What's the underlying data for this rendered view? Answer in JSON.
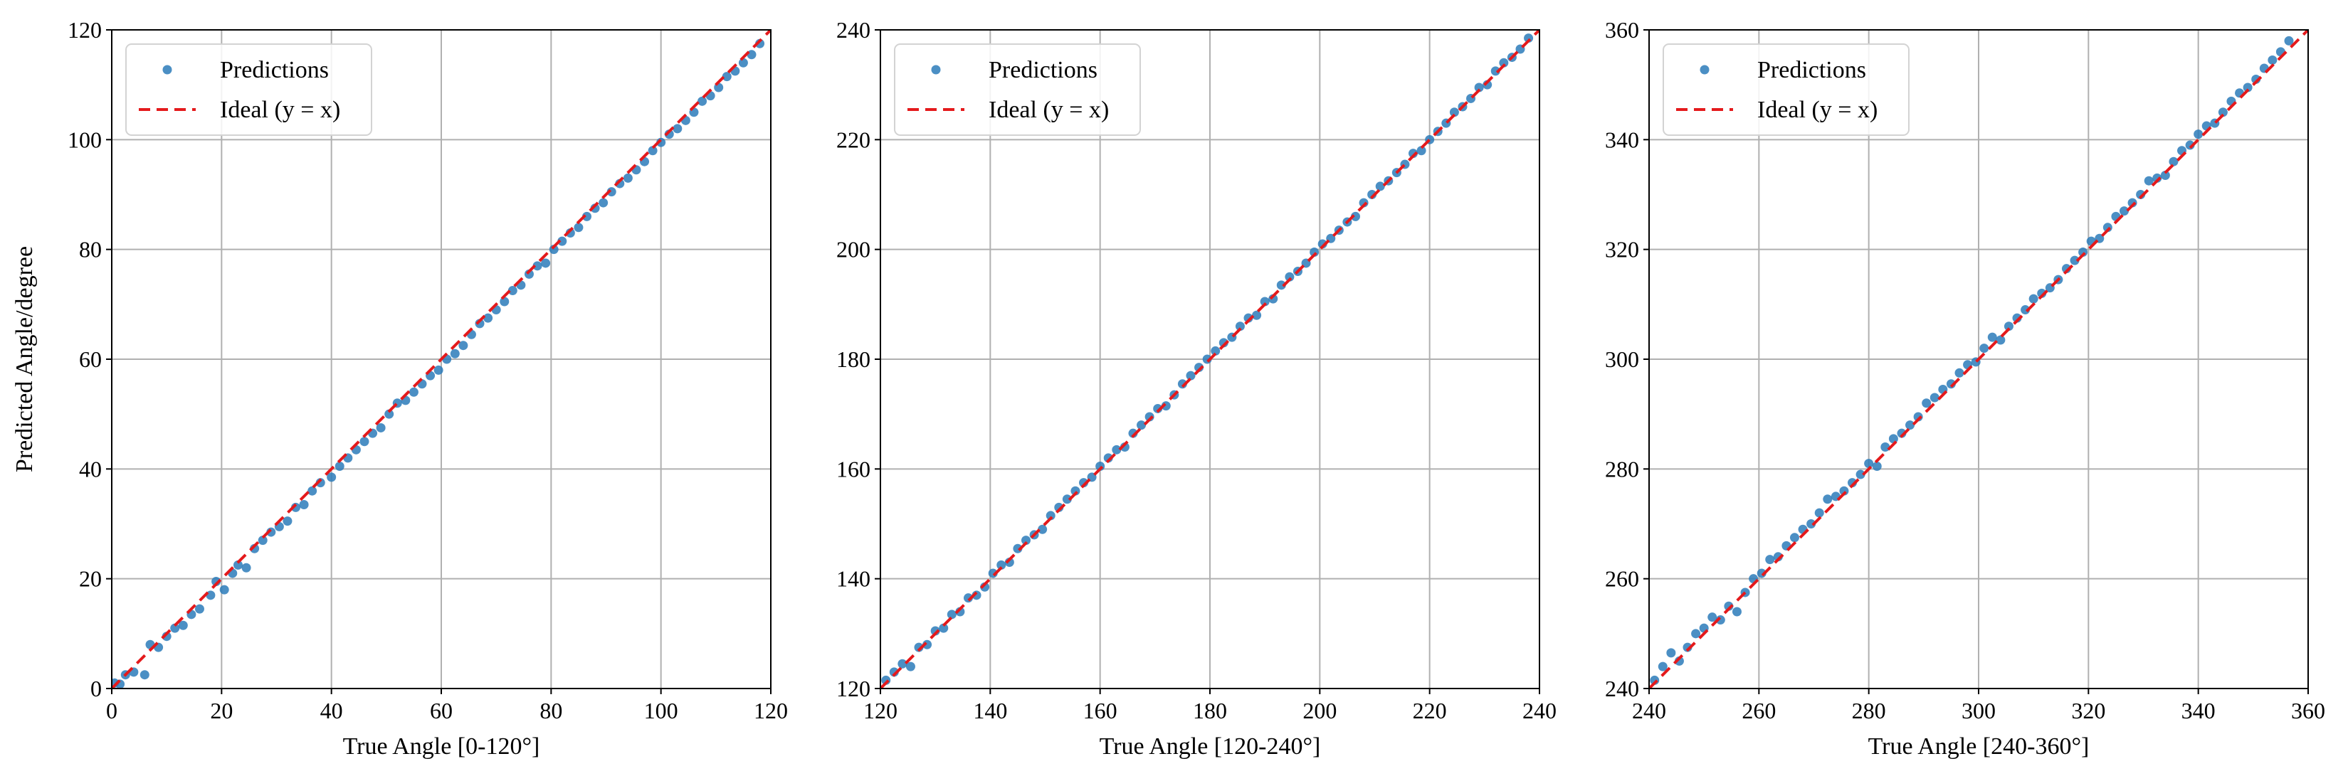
{
  "chart_data": [
    {
      "type": "scatter",
      "xlabel": "True Angle [0-120°]",
      "ylabel": "Predicted Angle/degree",
      "xlim": [
        0,
        120
      ],
      "ylim": [
        0,
        120
      ],
      "xticks": [
        0,
        20,
        40,
        60,
        80,
        100,
        120
      ],
      "yticks": [
        0,
        20,
        40,
        60,
        80,
        100,
        120
      ],
      "grid": true,
      "legend_placement": "top-left",
      "series": [
        {
          "name": "Predictions",
          "kind": "scatter",
          "color": "#2b7bba",
          "x": [
            0.5,
            1.5,
            2.5,
            4,
            6,
            7,
            8.5,
            10,
            11.5,
            13,
            14.5,
            16,
            18,
            19,
            20.5,
            22,
            23,
            24.5,
            26,
            27.5,
            29,
            30.5,
            32,
            33.5,
            35,
            36.5,
            38,
            40,
            41.5,
            43,
            44.5,
            46,
            47.5,
            49,
            50.5,
            52,
            53.5,
            55,
            56.5,
            58,
            59.5,
            61,
            62.5,
            64,
            65.5,
            67,
            68.5,
            70,
            71.5,
            73,
            74.5,
            76,
            77.5,
            79,
            80.5,
            82,
            83.5,
            85,
            86.5,
            88,
            89.5,
            91,
            92.5,
            94,
            95.5,
            97,
            98.5,
            100,
            101.5,
            103,
            104.5,
            106,
            107.5,
            109,
            110.5,
            112,
            113.5,
            115,
            116.5,
            118
          ],
          "y": [
            1,
            0.8,
            2.5,
            3,
            2.5,
            8,
            7.5,
            9.5,
            11,
            11.5,
            13.5,
            14.5,
            17,
            19.5,
            18,
            21,
            22.5,
            22,
            25.5,
            27,
            28.5,
            29.5,
            30.5,
            33,
            33.5,
            36,
            37.5,
            38.5,
            40.5,
            42,
            43.5,
            45,
            46.5,
            47.5,
            50,
            52,
            52.5,
            54,
            55.5,
            57,
            58,
            60,
            61,
            62.5,
            64.5,
            66.5,
            67.5,
            69,
            70.5,
            72.5,
            73.5,
            75.5,
            77,
            77.5,
            80,
            81.5,
            83,
            84,
            86,
            87.5,
            88.5,
            90.5,
            92,
            93,
            94.5,
            96,
            98,
            99.5,
            101,
            102,
            103.5,
            105,
            107,
            108,
            109.5,
            111.5,
            112.5,
            114,
            115.5,
            117.5
          ]
        },
        {
          "name": "Ideal (y = x)",
          "kind": "line",
          "color": "#e41a1c",
          "x": [
            0,
            120
          ],
          "y": [
            0,
            120
          ]
        }
      ]
    },
    {
      "type": "scatter",
      "xlabel": "True Angle [120-240°]",
      "ylabel": "",
      "xlim": [
        120,
        240
      ],
      "ylim": [
        120,
        240
      ],
      "xticks": [
        120,
        140,
        160,
        180,
        200,
        220,
        240
      ],
      "yticks": [
        120,
        140,
        160,
        180,
        200,
        220,
        240
      ],
      "grid": true,
      "legend_placement": "top-left",
      "series": [
        {
          "name": "Predictions",
          "kind": "scatter",
          "color": "#2b7bba",
          "x": [
            121,
            122.5,
            124,
            125.5,
            127,
            128.5,
            130,
            131.5,
            133,
            134.5,
            136,
            137.5,
            139,
            140.5,
            142,
            143.5,
            145,
            146.5,
            148,
            149.5,
            151,
            152.5,
            154,
            155.5,
            157,
            158.5,
            160,
            161.5,
            163,
            164.5,
            166,
            167.5,
            169,
            170.5,
            172,
            173.5,
            175,
            176.5,
            178,
            179.5,
            181,
            182.5,
            184,
            185.5,
            187,
            188.5,
            190,
            191.5,
            193,
            194.5,
            196,
            197.5,
            199,
            200.5,
            202,
            203.5,
            205,
            206.5,
            208,
            209.5,
            211,
            212.5,
            214,
            215.5,
            217,
            218.5,
            220,
            221.5,
            223,
            224.5,
            226,
            227.5,
            229,
            230.5,
            232,
            233.5,
            235,
            236.5,
            238
          ],
          "y": [
            121.5,
            123,
            124.5,
            124,
            127.5,
            128,
            130.5,
            131,
            133.5,
            134,
            136.5,
            137,
            138.5,
            141,
            142.5,
            143,
            145.5,
            147,
            148,
            149,
            151.5,
            153,
            154.5,
            156,
            157.5,
            158.5,
            160.5,
            162,
            163.5,
            164,
            166.5,
            168,
            169.5,
            171,
            171.5,
            173.5,
            175.5,
            177,
            178.5,
            180,
            181.5,
            183,
            184,
            186,
            187.5,
            188,
            190.5,
            191,
            193.5,
            195,
            196,
            197.5,
            199.5,
            201,
            202,
            203.5,
            205,
            206,
            208.5,
            210,
            211.5,
            212.5,
            214,
            215.5,
            217.5,
            218,
            220,
            221.5,
            223,
            225,
            226,
            227.5,
            229.5,
            230,
            232.5,
            234,
            235,
            236.5,
            238.5
          ]
        },
        {
          "name": "Ideal (y = x)",
          "kind": "line",
          "color": "#e41a1c",
          "x": [
            120,
            240
          ],
          "y": [
            120,
            240
          ]
        }
      ]
    },
    {
      "type": "scatter",
      "xlabel": "True Angle [240-360°]",
      "ylabel": "",
      "xlim": [
        240,
        360
      ],
      "ylim": [
        240,
        360
      ],
      "xticks": [
        240,
        260,
        280,
        300,
        320,
        340,
        360
      ],
      "yticks": [
        240,
        260,
        280,
        300,
        320,
        340,
        360
      ],
      "grid": true,
      "legend_placement": "top-left",
      "series": [
        {
          "name": "Predictions",
          "kind": "scatter",
          "color": "#2b7bba",
          "x": [
            241,
            242.5,
            244,
            245.5,
            247,
            248.5,
            250,
            251.5,
            253,
            254.5,
            256,
            257.5,
            259,
            260.5,
            262,
            263.5,
            265,
            266.5,
            268,
            269.5,
            271,
            272.5,
            274,
            275.5,
            277,
            278.5,
            280,
            281.5,
            283,
            284.5,
            286,
            287.5,
            289,
            290.5,
            292,
            293.5,
            295,
            296.5,
            298,
            299.5,
            301,
            302.5,
            304,
            305.5,
            307,
            308.5,
            310,
            311.5,
            313,
            314.5,
            316,
            317.5,
            319,
            320.5,
            322,
            323.5,
            325,
            326.5,
            328,
            329.5,
            331,
            332.5,
            334,
            335.5,
            337,
            338.5,
            340,
            341.5,
            343,
            344.5,
            346,
            347.5,
            349,
            350.5,
            352,
            353.5,
            355,
            356.5
          ],
          "y": [
            241.5,
            244,
            246.5,
            245,
            247.5,
            250,
            251,
            253,
            252.5,
            255,
            254,
            257.5,
            260,
            261,
            263.5,
            264,
            266,
            267.5,
            269,
            270,
            272,
            274.5,
            275,
            276,
            277.5,
            279,
            281,
            280.5,
            284,
            285.5,
            286.5,
            288,
            289.5,
            292,
            293,
            294.5,
            295.5,
            297.5,
            299,
            299.5,
            302,
            304,
            303.5,
            306,
            307.5,
            309,
            311,
            312,
            313,
            314.5,
            316.5,
            318,
            319.5,
            321.5,
            322,
            324,
            326,
            327,
            328.5,
            330,
            332.5,
            333,
            333.5,
            336,
            338,
            339,
            341,
            342.5,
            343,
            345,
            347,
            348.5,
            349.5,
            351,
            353,
            354.5,
            356,
            358
          ]
        },
        {
          "name": "Ideal (y = x)",
          "kind": "line",
          "color": "#e41a1c",
          "x": [
            240,
            360
          ],
          "y": [
            240,
            360
          ]
        }
      ]
    }
  ]
}
